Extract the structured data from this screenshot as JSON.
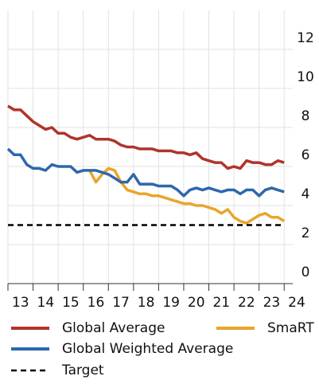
{
  "chart_data": {
    "type": "line",
    "x": [
      2013,
      2013.25,
      2013.5,
      2013.75,
      2014,
      2014.25,
      2014.5,
      2014.75,
      2015,
      2015.25,
      2015.5,
      2015.75,
      2016,
      2016.25,
      2016.5,
      2016.75,
      2017,
      2017.25,
      2017.5,
      2017.75,
      2018,
      2018.25,
      2018.5,
      2018.75,
      2019,
      2019.25,
      2019.5,
      2019.75,
      2020,
      2020.25,
      2020.5,
      2020.75,
      2021,
      2021.25,
      2021.5,
      2021.75,
      2022,
      2022.25,
      2022.5,
      2022.75,
      2023,
      2023.25,
      2023.5,
      2023.75,
      2024
    ],
    "series": [
      {
        "name": "Global Average",
        "color": "#b0342c",
        "values": [
          9.1,
          8.9,
          8.9,
          8.6,
          8.3,
          8.1,
          7.9,
          8.0,
          7.7,
          7.7,
          7.5,
          7.4,
          7.5,
          7.6,
          7.4,
          7.4,
          7.4,
          7.3,
          7.1,
          7.0,
          7.0,
          6.9,
          6.9,
          6.9,
          6.8,
          6.8,
          6.8,
          6.7,
          6.7,
          6.6,
          6.7,
          6.4,
          6.3,
          6.2,
          6.2,
          5.9,
          6.0,
          5.9,
          6.3,
          6.2,
          6.2,
          6.1,
          6.1,
          6.3,
          6.2
        ]
      },
      {
        "name": "SmaRT",
        "color": "#e8a62a",
        "values": [
          null,
          null,
          null,
          null,
          null,
          null,
          null,
          null,
          null,
          null,
          null,
          null,
          null,
          5.8,
          5.2,
          5.6,
          5.9,
          5.8,
          5.2,
          4.8,
          4.7,
          4.6,
          4.6,
          4.5,
          4.5,
          4.4,
          4.3,
          4.2,
          4.1,
          4.1,
          4.0,
          4.0,
          3.9,
          3.8,
          3.6,
          3.8,
          3.4,
          3.2,
          3.1,
          3.3,
          3.5,
          3.6,
          3.4,
          3.4,
          3.2
        ]
      },
      {
        "name": "Global Weighted Average",
        "color": "#2f67ac",
        "values": [
          6.9,
          6.6,
          6.6,
          6.1,
          5.9,
          5.9,
          5.8,
          6.1,
          6.0,
          6.0,
          6.0,
          5.7,
          5.8,
          5.8,
          5.8,
          5.7,
          5.6,
          5.4,
          5.2,
          5.2,
          5.6,
          5.1,
          5.1,
          5.1,
          5.0,
          5.0,
          5.0,
          4.8,
          4.5,
          4.8,
          4.9,
          4.8,
          4.9,
          4.8,
          4.7,
          4.8,
          4.8,
          4.6,
          4.8,
          4.8,
          4.5,
          4.8,
          4.9,
          4.8,
          4.7
        ]
      },
      {
        "name": "Target",
        "color": "#000000",
        "dashed": true,
        "values": [
          3,
          3,
          3,
          3,
          3,
          3,
          3,
          3,
          3,
          3,
          3,
          3,
          3,
          3,
          3,
          3,
          3,
          3,
          3,
          3,
          3,
          3,
          3,
          3,
          3,
          3,
          3,
          3,
          3,
          3,
          3,
          3,
          3,
          3,
          3,
          3,
          3,
          3,
          3,
          3,
          3,
          3,
          3,
          3,
          3
        ]
      }
    ],
    "xlim": [
      2013,
      2024.5
    ],
    "xticks": [
      {
        "value": 2013.5,
        "label": "13"
      },
      {
        "value": 2014.5,
        "label": "14"
      },
      {
        "value": 2015.5,
        "label": "15"
      },
      {
        "value": 2016.5,
        "label": "16"
      },
      {
        "value": 2017.5,
        "label": "17"
      },
      {
        "value": 2018.5,
        "label": "18"
      },
      {
        "value": 2019.5,
        "label": "19"
      },
      {
        "value": 2020.5,
        "label": "20"
      },
      {
        "value": 2021.5,
        "label": "21"
      },
      {
        "value": 2022.5,
        "label": "22"
      },
      {
        "value": 2023.5,
        "label": "23"
      },
      {
        "value": 2024.5,
        "label": "24"
      }
    ],
    "ylim": [
      0,
      14
    ],
    "yticks": [
      0,
      2,
      4,
      6,
      8,
      10,
      12
    ],
    "grid": true
  }
}
